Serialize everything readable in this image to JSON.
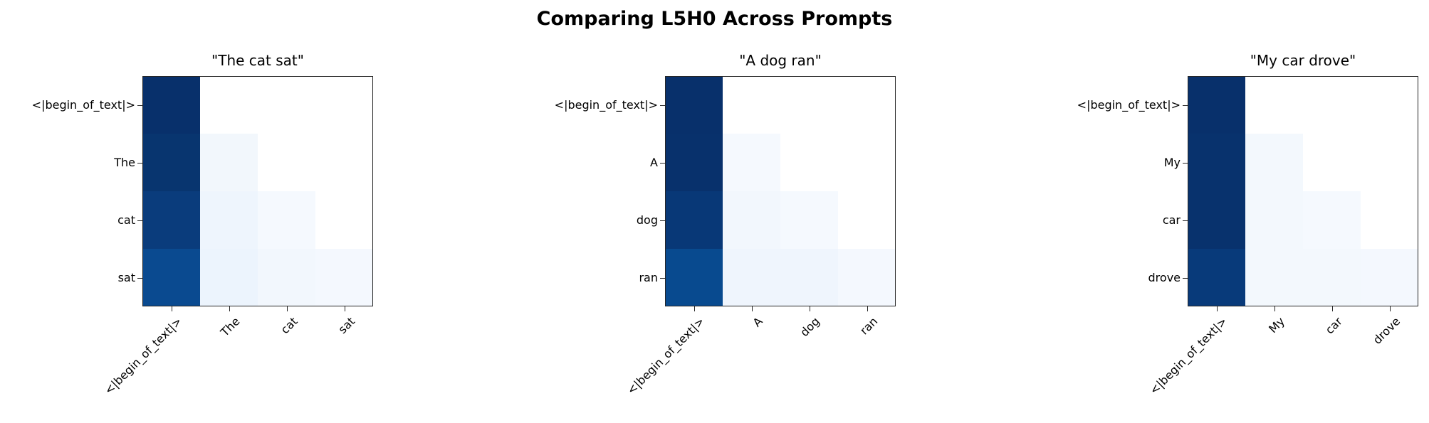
{
  "figure": {
    "title": "Comparing L5H0 Across Prompts"
  },
  "colormap": {
    "name": "Blues",
    "masked_color": "#ffffff",
    "low": "#f7fbff",
    "high": "#08306b"
  },
  "panels": [
    {
      "title": "\"The cat sat\"",
      "tokens": [
        "<|begin_of_text|>",
        "The",
        "cat",
        "sat"
      ],
      "cells": [
        [
          {
            "v": 1.0,
            "c": "#08306b"
          },
          {
            "v": null,
            "c": "#ffffff"
          },
          {
            "v": null,
            "c": "#ffffff"
          },
          {
            "v": null,
            "c": "#ffffff"
          }
        ],
        [
          {
            "v": 0.97,
            "c": "#08356f"
          },
          {
            "v": 0.03,
            "c": "#f2f7fc"
          },
          {
            "v": null,
            "c": "#ffffff"
          },
          {
            "v": null,
            "c": "#ffffff"
          }
        ],
        [
          {
            "v": 0.93,
            "c": "#0a3c7c"
          },
          {
            "v": 0.05,
            "c": "#eef5fd"
          },
          {
            "v": 0.02,
            "c": "#f5f9fe"
          },
          {
            "v": null,
            "c": "#ffffff"
          }
        ],
        [
          {
            "v": 0.86,
            "c": "#0a4a90"
          },
          {
            "v": 0.07,
            "c": "#ecf4fd"
          },
          {
            "v": 0.04,
            "c": "#f2f7fd"
          },
          {
            "v": 0.03,
            "c": "#f4f8fe"
          }
        ]
      ]
    },
    {
      "title": "\"A dog ran\"",
      "tokens": [
        "<|begin_of_text|>",
        "A",
        "dog",
        "ran"
      ],
      "cells": [
        [
          {
            "v": 1.0,
            "c": "#08306b"
          },
          {
            "v": null,
            "c": "#ffffff"
          },
          {
            "v": null,
            "c": "#ffffff"
          },
          {
            "v": null,
            "c": "#ffffff"
          }
        ],
        [
          {
            "v": 0.99,
            "c": "#08316c"
          },
          {
            "v": 0.01,
            "c": "#f5f9fe"
          },
          {
            "v": null,
            "c": "#ffffff"
          },
          {
            "v": null,
            "c": "#ffffff"
          }
        ],
        [
          {
            "v": 0.96,
            "c": "#083877"
          },
          {
            "v": 0.03,
            "c": "#f2f7fd"
          },
          {
            "v": 0.02,
            "c": "#f5f9fe"
          },
          {
            "v": null,
            "c": "#ffffff"
          }
        ],
        [
          {
            "v": 0.87,
            "c": "#084a8f"
          },
          {
            "v": 0.05,
            "c": "#eff5fd"
          },
          {
            "v": 0.05,
            "c": "#eff5fd"
          },
          {
            "v": 0.03,
            "c": "#f4f8fe"
          }
        ]
      ]
    },
    {
      "title": "\"My car drove\"",
      "tokens": [
        "<|begin_of_text|>",
        "My",
        "car",
        "drove"
      ],
      "cells": [
        [
          {
            "v": 1.0,
            "c": "#08306b"
          },
          {
            "v": null,
            "c": "#ffffff"
          },
          {
            "v": null,
            "c": "#ffffff"
          },
          {
            "v": null,
            "c": "#ffffff"
          }
        ],
        [
          {
            "v": 0.98,
            "c": "#08326d"
          },
          {
            "v": 0.02,
            "c": "#f3f8fd"
          },
          {
            "v": null,
            "c": "#ffffff"
          },
          {
            "v": null,
            "c": "#ffffff"
          }
        ],
        [
          {
            "v": 0.98,
            "c": "#08326d"
          },
          {
            "v": 0.03,
            "c": "#f3f8fd"
          },
          {
            "v": 0.01,
            "c": "#f5f9fe"
          },
          {
            "v": null,
            "c": "#ffffff"
          }
        ],
        [
          {
            "v": 0.94,
            "c": "#083a7a"
          },
          {
            "v": 0.02,
            "c": "#f3f8fd"
          },
          {
            "v": 0.02,
            "c": "#f3f8fd"
          },
          {
            "v": 0.02,
            "c": "#f4f8fe"
          }
        ]
      ]
    }
  ],
  "chart_data": [
    {
      "type": "heatmap",
      "title": "\"The cat sat\"",
      "suptitle": "Comparing L5H0 Across Prompts",
      "x_tick_labels": [
        "<|begin_of_text|>",
        "The",
        "cat",
        "sat"
      ],
      "y_tick_labels": [
        "<|begin_of_text|>",
        "The",
        "cat",
        "sat"
      ],
      "colormap": "Blues",
      "vrange": [
        0,
        1
      ],
      "values": [
        [
          1.0,
          null,
          null,
          null
        ],
        [
          0.97,
          0.03,
          null,
          null
        ],
        [
          0.93,
          0.05,
          0.02,
          null
        ],
        [
          0.86,
          0.07,
          0.04,
          0.03
        ]
      ],
      "xlabel": "",
      "ylabel": "",
      "grid": false,
      "legend": "none"
    },
    {
      "type": "heatmap",
      "title": "\"A dog ran\"",
      "x_tick_labels": [
        "<|begin_of_text|>",
        "A",
        "dog",
        "ran"
      ],
      "y_tick_labels": [
        "<|begin_of_text|>",
        "A",
        "dog",
        "ran"
      ],
      "colormap": "Blues",
      "vrange": [
        0,
        1
      ],
      "values": [
        [
          1.0,
          null,
          null,
          null
        ],
        [
          0.99,
          0.01,
          null,
          null
        ],
        [
          0.96,
          0.03,
          0.02,
          null
        ],
        [
          0.87,
          0.05,
          0.05,
          0.03
        ]
      ],
      "xlabel": "",
      "ylabel": "",
      "grid": false,
      "legend": "none"
    },
    {
      "type": "heatmap",
      "title": "\"My car drove\"",
      "x_tick_labels": [
        "<|begin_of_text|>",
        "My",
        "car",
        "drove"
      ],
      "y_tick_labels": [
        "<|begin_of_text|>",
        "My",
        "car",
        "drove"
      ],
      "colormap": "Blues",
      "vrange": [
        0,
        1
      ],
      "values": [
        [
          1.0,
          null,
          null,
          null
        ],
        [
          0.98,
          0.02,
          null,
          null
        ],
        [
          0.98,
          0.03,
          0.01,
          null
        ],
        [
          0.94,
          0.02,
          0.02,
          0.02
        ]
      ],
      "xlabel": "",
      "ylabel": "",
      "grid": false,
      "legend": "none"
    }
  ]
}
